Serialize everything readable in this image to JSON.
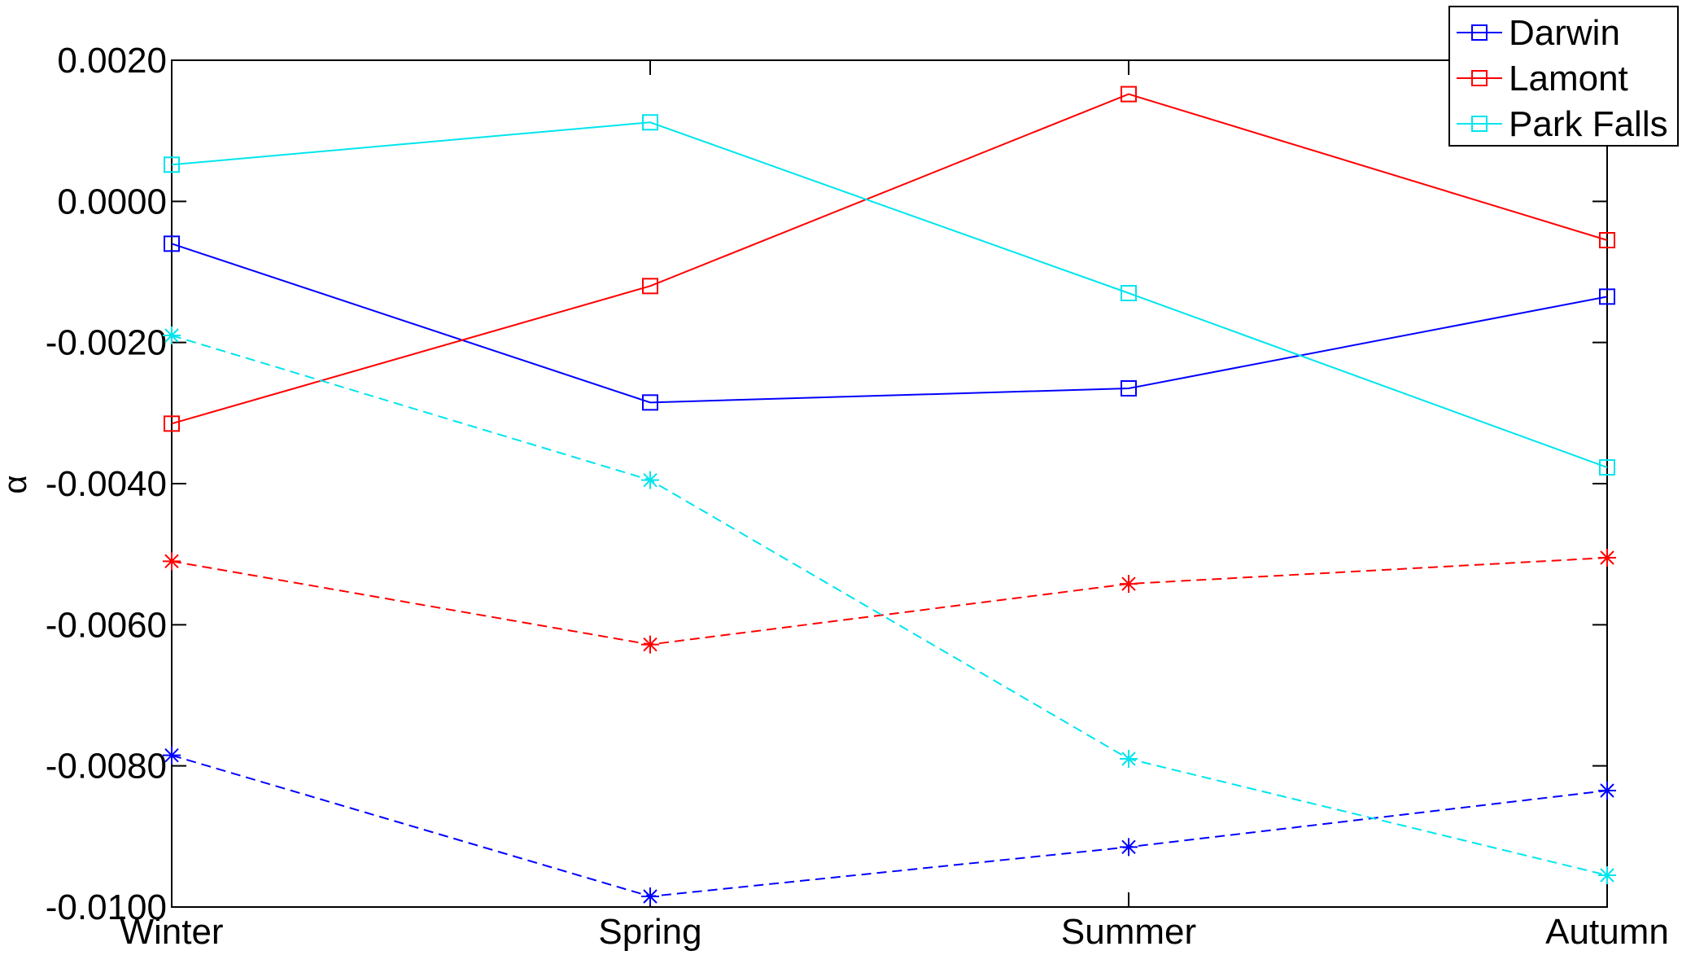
{
  "chart_data": {
    "type": "line",
    "title": "",
    "xlabel": "",
    "ylabel": "α",
    "categories": [
      "Winter",
      "Spring",
      "Summer",
      "Autumn"
    ],
    "ylim": [
      -0.01,
      0.002
    ],
    "yticks": [
      0.002,
      0.0,
      -0.002,
      -0.004,
      -0.006,
      -0.008,
      -0.01
    ],
    "ytick_labels": [
      "0.0020",
      "0.0000",
      "-0.0020",
      "-0.0040",
      "-0.0060",
      "-0.0080",
      "-0.0100"
    ],
    "grid": false,
    "legend_position": "top-right",
    "legend": [
      {
        "name": "Darwin",
        "color": "#0000ff"
      },
      {
        "name": "Lamont",
        "color": "#ff0000"
      },
      {
        "name": "Park Falls",
        "color": "#00e5ee"
      }
    ],
    "series": [
      {
        "name": "Darwin",
        "color": "#0000ff",
        "style": "solid",
        "marker": "square",
        "values": [
          -0.0006,
          -0.00285,
          -0.00265,
          -0.00135
        ]
      },
      {
        "name": "Lamont",
        "color": "#ff0000",
        "style": "solid",
        "marker": "square",
        "values": [
          -0.00315,
          -0.0012,
          0.00152,
          -0.00055
        ]
      },
      {
        "name": "Park Falls",
        "color": "#00e5ee",
        "style": "solid",
        "marker": "square",
        "values": [
          0.00052,
          0.00112,
          -0.0013,
          -0.00377
        ]
      },
      {
        "style": "dashed",
        "color": "#0000ff",
        "marker": "star",
        "values": [
          -0.00785,
          -0.00985,
          -0.00915,
          -0.00835
        ]
      },
      {
        "style": "dashed",
        "color": "#ff0000",
        "marker": "star",
        "values": [
          -0.0051,
          -0.00628,
          -0.00542,
          -0.00505
        ]
      },
      {
        "style": "dashed",
        "color": "#00e5ee",
        "marker": "star",
        "values": [
          -0.0019,
          -0.00395,
          -0.0079,
          -0.00955
        ]
      }
    ]
  }
}
